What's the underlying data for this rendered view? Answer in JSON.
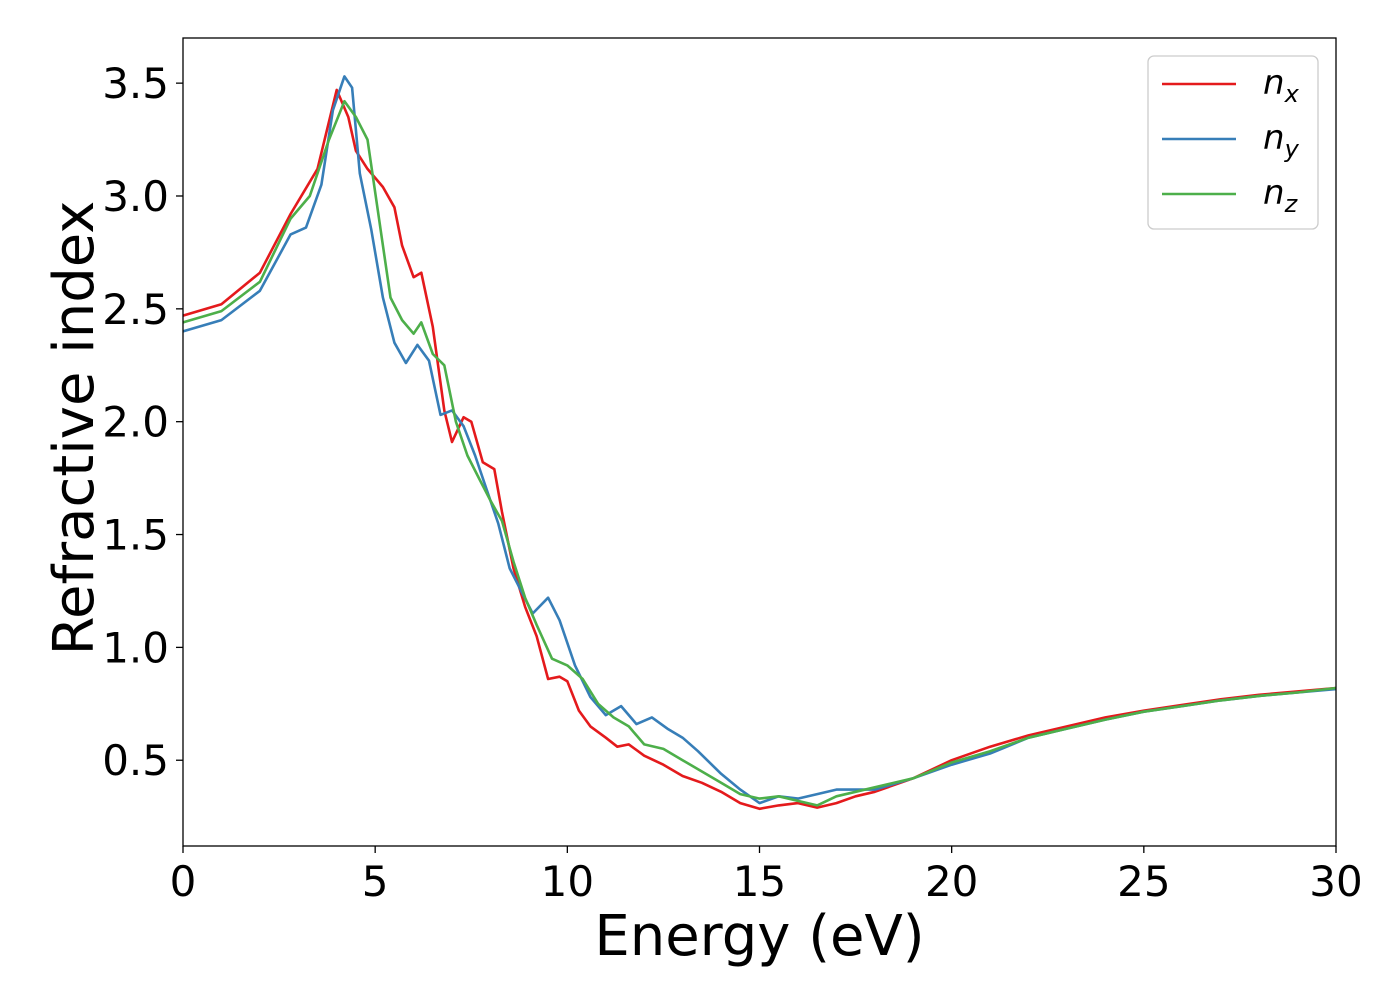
{
  "chart_data": {
    "type": "line",
    "title": "",
    "xlabel": "Energy (eV)",
    "ylabel": "Refractive index",
    "xlim": [
      0,
      30
    ],
    "ylim": [
      0.12,
      3.7
    ],
    "x_ticks": [
      0,
      5,
      10,
      15,
      20,
      25,
      30
    ],
    "y_ticks": [
      0.5,
      1.0,
      1.5,
      2.0,
      2.5,
      3.0,
      3.5
    ],
    "x_tick_labels": [
      "0",
      "5",
      "10",
      "15",
      "20",
      "25",
      "30"
    ],
    "y_tick_labels": [
      "0.5",
      "1.0",
      "1.5",
      "2.0",
      "2.5",
      "3.0",
      "3.5"
    ],
    "grid": false,
    "legend_position": "top-right",
    "series": [
      {
        "name": "n_x",
        "label_base": "n",
        "label_sub": "x",
        "color": "#e41a1c",
        "points": [
          [
            0,
            2.47
          ],
          [
            1,
            2.52
          ],
          [
            2,
            2.66
          ],
          [
            2.8,
            2.92
          ],
          [
            3.5,
            3.12
          ],
          [
            4.0,
            3.47
          ],
          [
            4.3,
            3.35
          ],
          [
            4.5,
            3.2
          ],
          [
            4.8,
            3.12
          ],
          [
            5.2,
            3.04
          ],
          [
            5.5,
            2.95
          ],
          [
            5.7,
            2.78
          ],
          [
            6.0,
            2.64
          ],
          [
            6.2,
            2.66
          ],
          [
            6.5,
            2.42
          ],
          [
            6.8,
            2.05
          ],
          [
            7.0,
            1.91
          ],
          [
            7.3,
            2.02
          ],
          [
            7.5,
            2.0
          ],
          [
            7.8,
            1.82
          ],
          [
            8.1,
            1.79
          ],
          [
            8.3,
            1.6
          ],
          [
            8.6,
            1.35
          ],
          [
            8.9,
            1.18
          ],
          [
            9.2,
            1.05
          ],
          [
            9.5,
            0.86
          ],
          [
            9.8,
            0.87
          ],
          [
            10.0,
            0.85
          ],
          [
            10.3,
            0.72
          ],
          [
            10.6,
            0.65
          ],
          [
            11.0,
            0.6
          ],
          [
            11.3,
            0.56
          ],
          [
            11.6,
            0.57
          ],
          [
            12.0,
            0.52
          ],
          [
            12.5,
            0.48
          ],
          [
            13.0,
            0.43
          ],
          [
            13.5,
            0.4
          ],
          [
            14.0,
            0.36
          ],
          [
            14.5,
            0.31
          ],
          [
            15.0,
            0.285
          ],
          [
            15.5,
            0.3
          ],
          [
            16.0,
            0.31
          ],
          [
            16.5,
            0.29
          ],
          [
            17.0,
            0.31
          ],
          [
            17.5,
            0.34
          ],
          [
            18.0,
            0.36
          ],
          [
            19.0,
            0.42
          ],
          [
            20.0,
            0.5
          ],
          [
            21.0,
            0.56
          ],
          [
            22.0,
            0.61
          ],
          [
            23.0,
            0.65
          ],
          [
            24.0,
            0.69
          ],
          [
            25.0,
            0.72
          ],
          [
            26.0,
            0.745
          ],
          [
            27.0,
            0.77
          ],
          [
            28.0,
            0.79
          ],
          [
            29.0,
            0.805
          ],
          [
            30.0,
            0.82
          ]
        ]
      },
      {
        "name": "n_y",
        "label_base": "n",
        "label_sub": "y",
        "color": "#377eb8",
        "points": [
          [
            0,
            2.4
          ],
          [
            1,
            2.45
          ],
          [
            2,
            2.58
          ],
          [
            2.8,
            2.83
          ],
          [
            3.2,
            2.86
          ],
          [
            3.6,
            3.05
          ],
          [
            3.9,
            3.38
          ],
          [
            4.2,
            3.53
          ],
          [
            4.4,
            3.48
          ],
          [
            4.6,
            3.1
          ],
          [
            4.9,
            2.85
          ],
          [
            5.2,
            2.55
          ],
          [
            5.5,
            2.35
          ],
          [
            5.8,
            2.26
          ],
          [
            6.1,
            2.34
          ],
          [
            6.4,
            2.27
          ],
          [
            6.7,
            2.03
          ],
          [
            7.0,
            2.05
          ],
          [
            7.3,
            1.98
          ],
          [
            7.6,
            1.85
          ],
          [
            7.9,
            1.7
          ],
          [
            8.2,
            1.55
          ],
          [
            8.5,
            1.35
          ],
          [
            8.8,
            1.25
          ],
          [
            9.1,
            1.15
          ],
          [
            9.5,
            1.22
          ],
          [
            9.8,
            1.12
          ],
          [
            10.2,
            0.92
          ],
          [
            10.6,
            0.78
          ],
          [
            11.0,
            0.7
          ],
          [
            11.4,
            0.74
          ],
          [
            11.8,
            0.66
          ],
          [
            12.2,
            0.69
          ],
          [
            12.6,
            0.64
          ],
          [
            13.0,
            0.6
          ],
          [
            13.4,
            0.54
          ],
          [
            14.0,
            0.44
          ],
          [
            14.5,
            0.37
          ],
          [
            15.0,
            0.31
          ],
          [
            15.5,
            0.34
          ],
          [
            16.0,
            0.33
          ],
          [
            16.5,
            0.35
          ],
          [
            17.0,
            0.37
          ],
          [
            18.0,
            0.37
          ],
          [
            19.0,
            0.42
          ],
          [
            20.0,
            0.48
          ],
          [
            21.0,
            0.53
          ],
          [
            22.0,
            0.6
          ],
          [
            23.0,
            0.64
          ],
          [
            24.0,
            0.68
          ],
          [
            25.0,
            0.715
          ],
          [
            26.0,
            0.74
          ],
          [
            27.0,
            0.765
          ],
          [
            28.0,
            0.785
          ],
          [
            29.0,
            0.8
          ],
          [
            30.0,
            0.815
          ]
        ]
      },
      {
        "name": "n_z",
        "label_base": "n",
        "label_sub": "z",
        "color": "#4daf4a",
        "points": [
          [
            0,
            2.44
          ],
          [
            1,
            2.49
          ],
          [
            2,
            2.62
          ],
          [
            2.8,
            2.9
          ],
          [
            3.3,
            3.0
          ],
          [
            3.8,
            3.25
          ],
          [
            4.2,
            3.42
          ],
          [
            4.5,
            3.35
          ],
          [
            4.8,
            3.25
          ],
          [
            5.1,
            2.9
          ],
          [
            5.4,
            2.55
          ],
          [
            5.7,
            2.45
          ],
          [
            6.0,
            2.39
          ],
          [
            6.2,
            2.44
          ],
          [
            6.5,
            2.3
          ],
          [
            6.8,
            2.25
          ],
          [
            7.1,
            2.0
          ],
          [
            7.4,
            1.85
          ],
          [
            7.7,
            1.75
          ],
          [
            8.0,
            1.65
          ],
          [
            8.3,
            1.56
          ],
          [
            8.6,
            1.38
          ],
          [
            8.9,
            1.22
          ],
          [
            9.2,
            1.1
          ],
          [
            9.6,
            0.95
          ],
          [
            10.0,
            0.92
          ],
          [
            10.4,
            0.86
          ],
          [
            10.8,
            0.75
          ],
          [
            11.2,
            0.69
          ],
          [
            11.6,
            0.65
          ],
          [
            12.0,
            0.57
          ],
          [
            12.5,
            0.55
          ],
          [
            13.0,
            0.5
          ],
          [
            13.5,
            0.45
          ],
          [
            14.0,
            0.4
          ],
          [
            14.5,
            0.35
          ],
          [
            15.0,
            0.33
          ],
          [
            15.5,
            0.34
          ],
          [
            16.0,
            0.32
          ],
          [
            16.5,
            0.3
          ],
          [
            17.0,
            0.34
          ],
          [
            18.0,
            0.38
          ],
          [
            19.0,
            0.42
          ],
          [
            20.0,
            0.49
          ],
          [
            21.0,
            0.54
          ],
          [
            22.0,
            0.6
          ],
          [
            23.0,
            0.64
          ],
          [
            24.0,
            0.68
          ],
          [
            25.0,
            0.715
          ],
          [
            26.0,
            0.74
          ],
          [
            27.0,
            0.765
          ],
          [
            28.0,
            0.785
          ],
          [
            29.0,
            0.8
          ],
          [
            30.0,
            0.82
          ]
        ]
      }
    ]
  }
}
